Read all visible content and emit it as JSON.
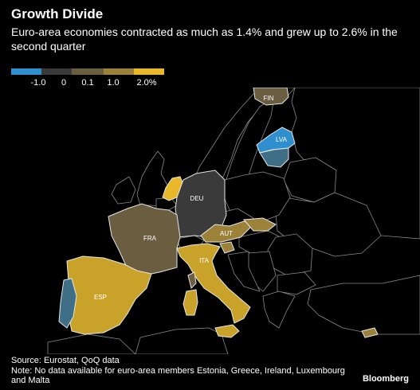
{
  "header": {
    "title": "Growth Divide",
    "subtitle": "Euro-area economies contracted as much as 1.4% and grew up to 2.6% in the second quarter"
  },
  "legend": {
    "colors": [
      "#2f8fce",
      "#3a3a3a",
      "#6b5d40",
      "#9c8238",
      "#e8b82a"
    ],
    "labels": [
      "-1.0",
      "0",
      "0.1",
      "1.0",
      "2.0%"
    ]
  },
  "colors": {
    "eu_negative_strong": "#2f8fce",
    "eu_negative_mild": "#3e6f86",
    "eu_near_zero": "#3a3a3a",
    "eu_low": "#6b5d40",
    "eu_mid": "#9c8238",
    "eu_high": "#e8b82a",
    "non_euro": "#000000"
  },
  "map": {
    "country_labels": {
      "fin": "FIN",
      "lva": "LVA",
      "deu": "DEU",
      "fra": "FRA",
      "aut": "AUT",
      "ita": "ITA",
      "esp": "ESP"
    }
  },
  "footer": {
    "source": "Source: Eurostat, QoQ data",
    "note": "Note: No data available for euro-area members Estonia, Greece, Ireland, Luxembourg and Malta"
  },
  "brand": "Bloomberg"
}
